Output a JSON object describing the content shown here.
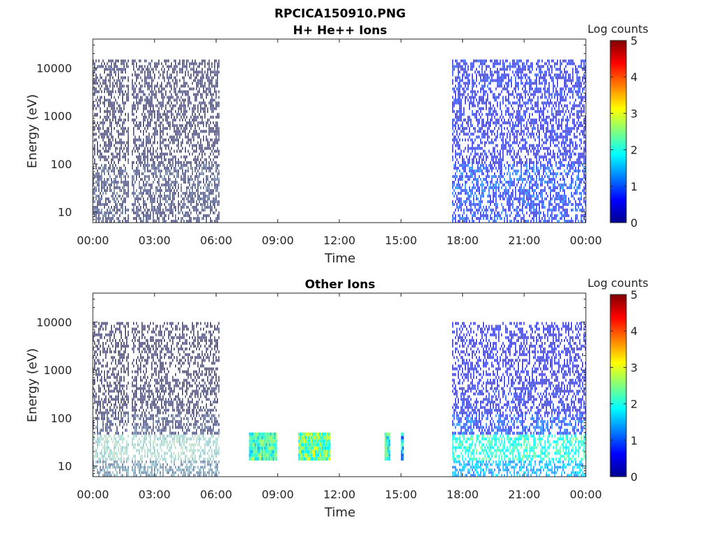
{
  "chart_data": [
    {
      "type": "heatmap",
      "title": "RPCICA150910.PNG",
      "subtitle": "H+ He++ Ions",
      "xlabel": "Time",
      "ylabel": "Energy (eV)",
      "yscale": "log",
      "ylim": [
        6,
        40000
      ],
      "xlim": [
        "00:00",
        "24:00"
      ],
      "x_ticks": [
        "00:00",
        "03:00",
        "06:00",
        "09:00",
        "12:00",
        "15:00",
        "18:00",
        "21:00",
        "00:00"
      ],
      "y_ticks": [
        10,
        100,
        1000,
        10000
      ],
      "y_tick_labels": [
        "10",
        "100",
        "1000",
        "10000"
      ],
      "colorbar": {
        "label": "Log counts",
        "range": [
          0,
          5
        ],
        "ticks": [
          "0",
          "1",
          "2",
          "3",
          "4",
          "5"
        ],
        "colormap": "jet"
      },
      "data_intervals_hours": [
        [
          0.0,
          1.75
        ],
        [
          1.9,
          6.15
        ],
        [
          17.5,
          24.0
        ]
      ],
      "energy_bands": [
        {
          "e_min": 2000,
          "e_max": 15000,
          "level": 0.3
        },
        {
          "e_min": 100,
          "e_max": 2000,
          "level": 0.25
        },
        {
          "e_min": 20,
          "e_max": 100,
          "level": 0.6
        },
        {
          "e_min": 6,
          "e_max": 20,
          "level": 0.5
        }
      ]
    },
    {
      "type": "heatmap",
      "title": "Other Ions",
      "xlabel": "Time",
      "ylabel": "Energy (eV)",
      "yscale": "log",
      "ylim": [
        6,
        40000
      ],
      "xlim": [
        "00:00",
        "24:00"
      ],
      "x_ticks": [
        "00:00",
        "03:00",
        "06:00",
        "09:00",
        "12:00",
        "15:00",
        "18:00",
        "21:00",
        "00:00"
      ],
      "y_ticks": [
        10,
        100,
        1000,
        10000
      ],
      "y_tick_labels": [
        "10",
        "100",
        "1000",
        "10000"
      ],
      "colorbar": {
        "label": "Log counts",
        "range": [
          0,
          5
        ],
        "ticks": [
          "0",
          "1",
          "2",
          "3",
          "4",
          "5"
        ],
        "colormap": "jet"
      },
      "data_intervals_hours": [
        [
          0.0,
          1.75
        ],
        [
          1.9,
          6.15
        ],
        [
          17.5,
          24.0
        ]
      ],
      "bursts_hours": [
        [
          7.6,
          8.9,
          2.2
        ],
        [
          10.0,
          11.5,
          2.4
        ],
        [
          14.2,
          14.45,
          2.0
        ],
        [
          15.0,
          15.1,
          1.6
        ]
      ],
      "burst_energy_range": [
        13,
        50
      ],
      "energy_bands": [
        {
          "e_min": 500,
          "e_max": 10000,
          "level": 0.15
        },
        {
          "e_min": 120,
          "e_max": 500,
          "level": 0.25
        },
        {
          "e_min": 45,
          "e_max": 120,
          "level": 0.6
        },
        {
          "e_min": 13,
          "e_max": 45,
          "level": 1.9
        },
        {
          "e_min": 6,
          "e_max": 13,
          "level": 1.2
        }
      ]
    }
  ]
}
